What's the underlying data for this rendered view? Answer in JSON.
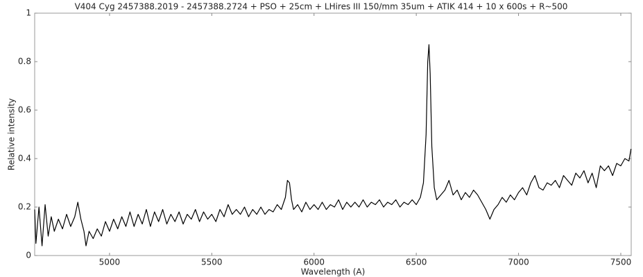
{
  "chart_data": {
    "type": "line",
    "title": "V404 Cyg 2457388.2019 - 2457388.2724 + PSO + 25cm + LHires III 150/mm 35um + ATIK 414 + 10 x 600s + R~500",
    "x_label": "Wavelength (A)",
    "y_label": "Relative intensity",
    "color": "#000000",
    "xlim": [
      4634,
      7551
    ],
    "ylim": [
      0,
      1
    ],
    "xticks": [
      5000,
      5500,
      6000,
      6500,
      7000,
      7500
    ],
    "yticks": [
      0,
      0.2,
      0.4,
      0.6,
      0.8,
      1
    ],
    "x": [
      4634,
      4640,
      4655,
      4670,
      4685,
      4700,
      4715,
      4730,
      4750,
      4770,
      4790,
      4810,
      4830,
      4845,
      4860,
      4875,
      4885,
      4900,
      4920,
      4940,
      4960,
      4980,
      5000,
      5020,
      5040,
      5060,
      5080,
      5100,
      5120,
      5140,
      5160,
      5180,
      5200,
      5220,
      5240,
      5260,
      5280,
      5300,
      5320,
      5340,
      5360,
      5380,
      5400,
      5420,
      5440,
      5460,
      5480,
      5500,
      5520,
      5540,
      5560,
      5580,
      5600,
      5620,
      5640,
      5660,
      5680,
      5700,
      5720,
      5740,
      5760,
      5780,
      5800,
      5820,
      5840,
      5860,
      5870,
      5880,
      5890,
      5900,
      5920,
      5940,
      5960,
      5980,
      6000,
      6020,
      6040,
      6060,
      6080,
      6100,
      6120,
      6140,
      6160,
      6180,
      6200,
      6220,
      6240,
      6260,
      6280,
      6300,
      6320,
      6340,
      6360,
      6380,
      6400,
      6420,
      6440,
      6460,
      6480,
      6500,
      6520,
      6535,
      6548,
      6556,
      6562,
      6568,
      6576,
      6588,
      6600,
      6620,
      6640,
      6660,
      6680,
      6700,
      6720,
      6740,
      6760,
      6780,
      6800,
      6820,
      6840,
      6860,
      6880,
      6900,
      6920,
      6940,
      6960,
      6980,
      7000,
      7020,
      7040,
      7060,
      7080,
      7100,
      7120,
      7140,
      7160,
      7180,
      7200,
      7220,
      7240,
      7260,
      7280,
      7300,
      7320,
      7340,
      7360,
      7380,
      7400,
      7420,
      7440,
      7460,
      7480,
      7500,
      7520,
      7540,
      7550
    ],
    "values": [
      0.19,
      0.05,
      0.2,
      0.04,
      0.21,
      0.08,
      0.16,
      0.1,
      0.15,
      0.11,
      0.17,
      0.12,
      0.16,
      0.22,
      0.15,
      0.1,
      0.04,
      0.1,
      0.07,
      0.11,
      0.08,
      0.14,
      0.1,
      0.15,
      0.11,
      0.16,
      0.12,
      0.18,
      0.12,
      0.17,
      0.13,
      0.19,
      0.12,
      0.18,
      0.14,
      0.19,
      0.13,
      0.17,
      0.14,
      0.18,
      0.13,
      0.17,
      0.15,
      0.19,
      0.14,
      0.18,
      0.15,
      0.17,
      0.14,
      0.19,
      0.16,
      0.21,
      0.17,
      0.19,
      0.17,
      0.2,
      0.16,
      0.19,
      0.17,
      0.2,
      0.17,
      0.19,
      0.18,
      0.21,
      0.19,
      0.24,
      0.31,
      0.3,
      0.23,
      0.19,
      0.21,
      0.18,
      0.22,
      0.19,
      0.21,
      0.19,
      0.22,
      0.19,
      0.21,
      0.2,
      0.23,
      0.19,
      0.22,
      0.2,
      0.22,
      0.2,
      0.23,
      0.2,
      0.22,
      0.21,
      0.23,
      0.2,
      0.22,
      0.21,
      0.23,
      0.2,
      0.22,
      0.21,
      0.23,
      0.21,
      0.24,
      0.3,
      0.5,
      0.8,
      0.87,
      0.75,
      0.45,
      0.28,
      0.23,
      0.25,
      0.27,
      0.31,
      0.25,
      0.27,
      0.23,
      0.26,
      0.24,
      0.27,
      0.25,
      0.22,
      0.19,
      0.15,
      0.19,
      0.21,
      0.24,
      0.22,
      0.25,
      0.23,
      0.26,
      0.28,
      0.25,
      0.3,
      0.33,
      0.28,
      0.27,
      0.3,
      0.29,
      0.31,
      0.28,
      0.33,
      0.31,
      0.29,
      0.34,
      0.32,
      0.35,
      0.3,
      0.34,
      0.28,
      0.37,
      0.35,
      0.37,
      0.33,
      0.38,
      0.37,
      0.4,
      0.39,
      0.44
    ]
  }
}
